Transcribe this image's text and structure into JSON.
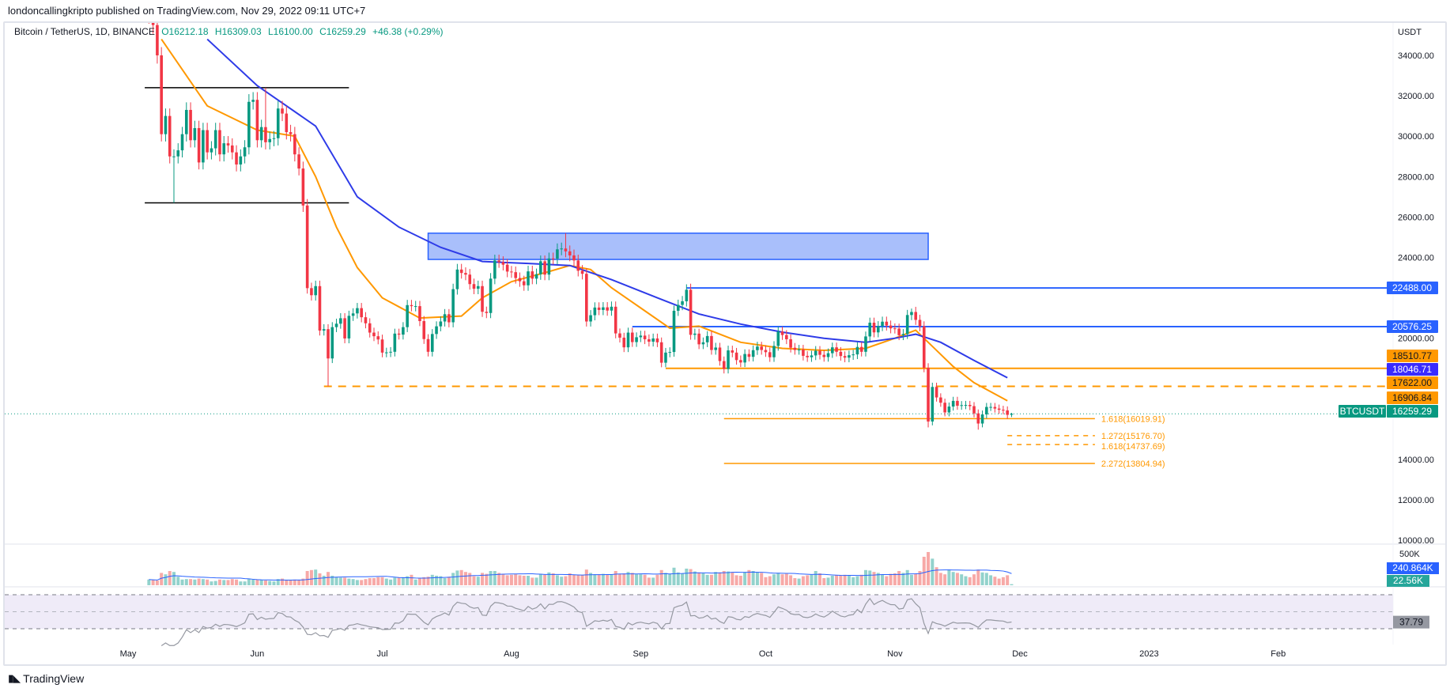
{
  "header": {
    "published": "londoncallingkripto published on TradingView.com, Nov 29, 2022 09:11 UTC+7"
  },
  "legend": {
    "symbol": "Bitcoin / TetherUS, 1D, BINANCE",
    "open": "O16212.18",
    "high": "H16309.03",
    "low": "L16100.00",
    "close": "C16259.29",
    "change": "+46.38 (+0.29%)"
  },
  "footer": {
    "logo_text": "TradingView"
  },
  "colors": {
    "up": "#089981",
    "down": "#F23645",
    "vol_up": "#92D2CC",
    "vol_down": "#F7A9A7",
    "ma_fast": "#FF9800",
    "ma_slow": "#2E3BE8",
    "level_blue": "#2962FF",
    "level_orange": "#FF9800",
    "rsi": "#9598A1",
    "rsi_band": "#EFEBF8"
  },
  "chart_data": [
    {
      "type": "candlestick",
      "title": "Bitcoin / TetherUS, 1D, BINANCE",
      "yunit": "USDT",
      "start_date": "2022-05-06",
      "ylim": [
        9500,
        35200
      ],
      "yticks": [
        10000,
        12000,
        14000,
        16000,
        18000,
        20000,
        22000,
        24000,
        26000,
        28000,
        30000,
        32000,
        34000
      ],
      "ytick_labels": [
        "10000.00",
        "12000.00",
        "14000.00",
        "16000.00",
        "18000.00",
        "20000.00",
        "22000.00",
        "24000.00",
        "26000.00",
        "28000.00",
        "30000.00",
        "32000.00",
        "34000.00"
      ],
      "xticks": [
        {
          "date": "2022-05-01",
          "label": "May"
        },
        {
          "date": "2022-06-01",
          "label": "Jun"
        },
        {
          "date": "2022-07-01",
          "label": "Jul"
        },
        {
          "date": "2022-08-01",
          "label": "Aug"
        },
        {
          "date": "2022-09-01",
          "label": "Sep"
        },
        {
          "date": "2022-10-01",
          "label": "Oct"
        },
        {
          "date": "2022-11-01",
          "label": "Nov"
        },
        {
          "date": "2022-12-01",
          "label": "Dec"
        },
        {
          "date": "2023-01-01",
          "label": "2023"
        },
        {
          "date": "2023-02-01",
          "label": "Feb"
        }
      ],
      "closes": [
        36000,
        35500,
        34000,
        30100,
        31000,
        29000,
        29000,
        29300,
        30100,
        31300,
        29800,
        30400,
        28700,
        30300,
        29200,
        29400,
        30300,
        29100,
        29650,
        29540,
        29200,
        28600,
        29000,
        29450,
        31700,
        31800,
        29800,
        30450,
        29700,
        29860,
        29900,
        31370,
        31120,
        30200,
        30100,
        29100,
        28400,
        26570,
        22480,
        22130,
        22580,
        20380,
        20450,
        19000,
        20550,
        20720,
        20990,
        19990,
        21110,
        21230,
        21490,
        21040,
        20740,
        20280,
        20100,
        19940,
        19290,
        19300,
        19330,
        20230,
        20180,
        20550,
        21640,
        21590,
        21590,
        20850,
        19960,
        19330,
        20210,
        20590,
        20830,
        21190,
        20790,
        22430,
        23400,
        23230,
        23150,
        22680,
        22450,
        22580,
        21310,
        21250,
        22950,
        23850,
        23770,
        23640,
        23300,
        23270,
        22980,
        22820,
        22620,
        23310,
        22950,
        23170,
        23810,
        23150,
        23950,
        23940,
        24400,
        24440,
        24300,
        24100,
        23850,
        23340,
        23190,
        20830,
        21140,
        21520,
        21400,
        21530,
        21370,
        21560,
        20240,
        20030,
        19550,
        20280,
        19810,
        20050,
        20130,
        19950,
        19830,
        19990,
        19800,
        18790,
        19290,
        19320,
        21360,
        21650,
        21830,
        22400,
        20170,
        20230,
        19700,
        19800,
        20110,
        19420,
        19540,
        18870,
        18480,
        19400,
        19290,
        18920,
        18800,
        19220,
        19080,
        19410,
        19590,
        19420,
        19310,
        19060,
        19620,
        20330,
        20160,
        19950,
        19530,
        19420,
        19440,
        19130,
        19060,
        19150,
        19380,
        19180,
        19070,
        19260,
        19550,
        19330,
        19120,
        19040,
        19160,
        19200,
        19570,
        19330,
        20090,
        20770,
        20290,
        20600,
        20820,
        20630,
        20490,
        20480,
        20150,
        20210,
        21150,
        21300,
        20910,
        20590,
        18540,
        15880,
        17590,
        17070,
        16810,
        16330,
        16620,
        16900,
        16660,
        16690,
        16700,
        16640,
        16280,
        15780,
        16230,
        16600,
        16600,
        16520,
        16460,
        16430,
        16210,
        16259.29
      ],
      "last_candle": {
        "open": 16212.18,
        "high": 16309.03,
        "low": 16100.0,
        "close": 16259.29
      },
      "notable_lows": {
        "2022-05-12": 26700,
        "2022-06-18": 17622,
        "2022-11-09": 15588,
        "2022-11-21": 15476
      },
      "notable_highs": {
        "2022-06-03": 32400,
        "2022-08-14": 25200,
        "2022-09-13": 22700,
        "2022-11-05": 21470
      },
      "moving_averages": [
        {
          "value_label": "16906.84",
          "color": "#FF9800",
          "points": [
            [
              "2022-05-09",
              34800
            ],
            [
              "2022-05-20",
              31500
            ],
            [
              "2022-06-01",
              30300
            ],
            [
              "2022-06-10",
              30000
            ],
            [
              "2022-06-15",
              28000
            ],
            [
              "2022-06-20",
              25500
            ],
            [
              "2022-06-25",
              23500
            ],
            [
              "2022-07-01",
              22000
            ],
            [
              "2022-07-10",
              21000
            ],
            [
              "2022-07-20",
              21100
            ],
            [
              "2022-07-25",
              22000
            ],
            [
              "2022-08-01",
              22800
            ],
            [
              "2022-08-10",
              23300
            ],
            [
              "2022-08-15",
              23600
            ],
            [
              "2022-08-20",
              23400
            ],
            [
              "2022-08-25",
              22500
            ],
            [
              "2022-09-01",
              21500
            ],
            [
              "2022-09-08",
              20500
            ],
            [
              "2022-09-15",
              20600
            ],
            [
              "2022-09-25",
              19800
            ],
            [
              "2022-10-05",
              19500
            ],
            [
              "2022-10-15",
              19400
            ],
            [
              "2022-10-25",
              19500
            ],
            [
              "2022-11-01",
              20000
            ],
            [
              "2022-11-06",
              20400
            ],
            [
              "2022-11-10",
              19600
            ],
            [
              "2022-11-15",
              18600
            ],
            [
              "2022-11-20",
              17800
            ],
            [
              "2022-11-28",
              16906.84
            ]
          ]
        },
        {
          "value_label": "18046.71",
          "color": "#2E3BE8",
          "points": [
            [
              "2022-05-20",
              34800
            ],
            [
              "2022-06-01",
              32500
            ],
            [
              "2022-06-15",
              30500
            ],
            [
              "2022-06-25",
              27000
            ],
            [
              "2022-07-05",
              25500
            ],
            [
              "2022-07-15",
              24500
            ],
            [
              "2022-07-25",
              23800
            ],
            [
              "2022-08-05",
              23700
            ],
            [
              "2022-08-15",
              23600
            ],
            [
              "2022-08-25",
              22900
            ],
            [
              "2022-09-05",
              22000
            ],
            [
              "2022-09-15",
              21200
            ],
            [
              "2022-09-25",
              20700
            ],
            [
              "2022-10-05",
              20300
            ],
            [
              "2022-10-15",
              20000
            ],
            [
              "2022-10-25",
              19800
            ],
            [
              "2022-11-01",
              20000
            ],
            [
              "2022-11-06",
              20200
            ],
            [
              "2022-11-12",
              19800
            ],
            [
              "2022-11-20",
              18900
            ],
            [
              "2022-11-28",
              18046.71
            ]
          ]
        }
      ],
      "drawings": {
        "range_lines": [
          {
            "price": 32400,
            "from": "2022-05-05",
            "to": "2022-06-23",
            "color": "#000000"
          },
          {
            "price": 26700,
            "from": "2022-05-05",
            "to": "2022-06-23",
            "color": "#000000"
          }
        ],
        "zone": {
          "low": 23900,
          "high": 25200,
          "from": "2022-07-12",
          "to": "2022-11-09",
          "color": "#2962FF"
        },
        "levels": [
          {
            "price": 22488.0,
            "label": "22488.00",
            "from": "2022-09-12",
            "color": "#2962FF",
            "style": "solid"
          },
          {
            "price": 20576.25,
            "label": "20576.25",
            "from": "2022-08-30",
            "color": "#2962FF",
            "style": "solid"
          },
          {
            "price": 18510.77,
            "label": "18510.77",
            "from": "2022-09-07",
            "color": "#FF9800",
            "style": "solid"
          },
          {
            "price": 17622.0,
            "label": "17622.00",
            "from": "2022-06-17",
            "color": "#FF9800",
            "style": "dashed"
          }
        ],
        "fib_levels": [
          {
            "price": 16019.91,
            "label": "1.618(16019.91)",
            "from": "2022-09-21",
            "to": "2022-12-19",
            "style": "solid"
          },
          {
            "price": 15176.7,
            "label": "1.272(15176.70)",
            "from": "2022-11-28",
            "to": "2022-12-19",
            "style": "dashed"
          },
          {
            "price": 14737.69,
            "label": "1.618(14737.69)",
            "from": "2022-11-28",
            "to": "2022-12-19",
            "style": "dashed"
          },
          {
            "price": 13804.94,
            "label": "2.272(13804.94)",
            "from": "2022-09-21",
            "to": "2022-12-19",
            "style": "solid"
          }
        ]
      },
      "axis_labels": [
        {
          "text": "22488.00",
          "bg": "#2962FF",
          "fg": "#ffffff"
        },
        {
          "text": "20576.25",
          "bg": "#2962FF",
          "fg": "#ffffff"
        },
        {
          "text": "18510.77",
          "bg": "#FF9800",
          "fg": "#131722"
        },
        {
          "text": "18046.71",
          "bg": "#3A2BFF",
          "fg": "#ffffff"
        },
        {
          "text": "17622.00",
          "bg": "#FF9800",
          "fg": "#131722"
        },
        {
          "text": "16906.84",
          "bg": "#FF9800",
          "fg": "#131722"
        },
        {
          "text": "16259.29",
          "bg": "#089981",
          "fg": "#ffffff",
          "tag": "BTCUSDT"
        }
      ]
    },
    {
      "type": "bar",
      "title": "Volume",
      "unit": "K",
      "tick_label": "500K",
      "tick_value": 500,
      "values": [
        120,
        110,
        100,
        260,
        230,
        300,
        280,
        180,
        120,
        130,
        130,
        120,
        140,
        130,
        120,
        80,
        90,
        120,
        110,
        110,
        130,
        120,
        80,
        80,
        130,
        120,
        120,
        110,
        100,
        90,
        80,
        130,
        140,
        110,
        100,
        120,
        110,
        140,
        300,
        320,
        330,
        250,
        200,
        280,
        200,
        170,
        160,
        160,
        140,
        130,
        110,
        110,
        130,
        150,
        150,
        170,
        170,
        140,
        120,
        160,
        160,
        170,
        190,
        220,
        120,
        150,
        170,
        180,
        220,
        200,
        190,
        150,
        180,
        260,
        310,
        320,
        280,
        260,
        190,
        180,
        260,
        240,
        300,
        300,
        260,
        230,
        210,
        220,
        230,
        210,
        200,
        200,
        160,
        160,
        240,
        220,
        270,
        250,
        210,
        180,
        190,
        250,
        220,
        220,
        210,
        330,
        260,
        230,
        230,
        240,
        220,
        220,
        300,
        240,
        250,
        280,
        260,
        230,
        230,
        220,
        160,
        160,
        220,
        320,
        260,
        240,
        370,
        270,
        250,
        350,
        340,
        290,
        270,
        250,
        220,
        220,
        280,
        270,
        300,
        290,
        270,
        210,
        200,
        280,
        320,
        300,
        280,
        260,
        170,
        190,
        230,
        260,
        230,
        240,
        210,
        150,
        140,
        190,
        210,
        220,
        300,
        250,
        150,
        160,
        200,
        210,
        200,
        220,
        210,
        170,
        190,
        220,
        320,
        310,
        280,
        260,
        220,
        190,
        240,
        250,
        300,
        260,
        320,
        220,
        240,
        300,
        600,
        700,
        560,
        380,
        260,
        230,
        330,
        280,
        260,
        230,
        190,
        170,
        230,
        330,
        270,
        260,
        210,
        180,
        140,
        170,
        210,
        22.56
      ],
      "ma_label": "240.864K",
      "ma_value": 240.864,
      "last_label": "22.56K"
    },
    {
      "type": "line",
      "title": "RSI",
      "bands": [
        30,
        50,
        70
      ],
      "current_label": "37.79",
      "current_value": 37.79
    }
  ]
}
